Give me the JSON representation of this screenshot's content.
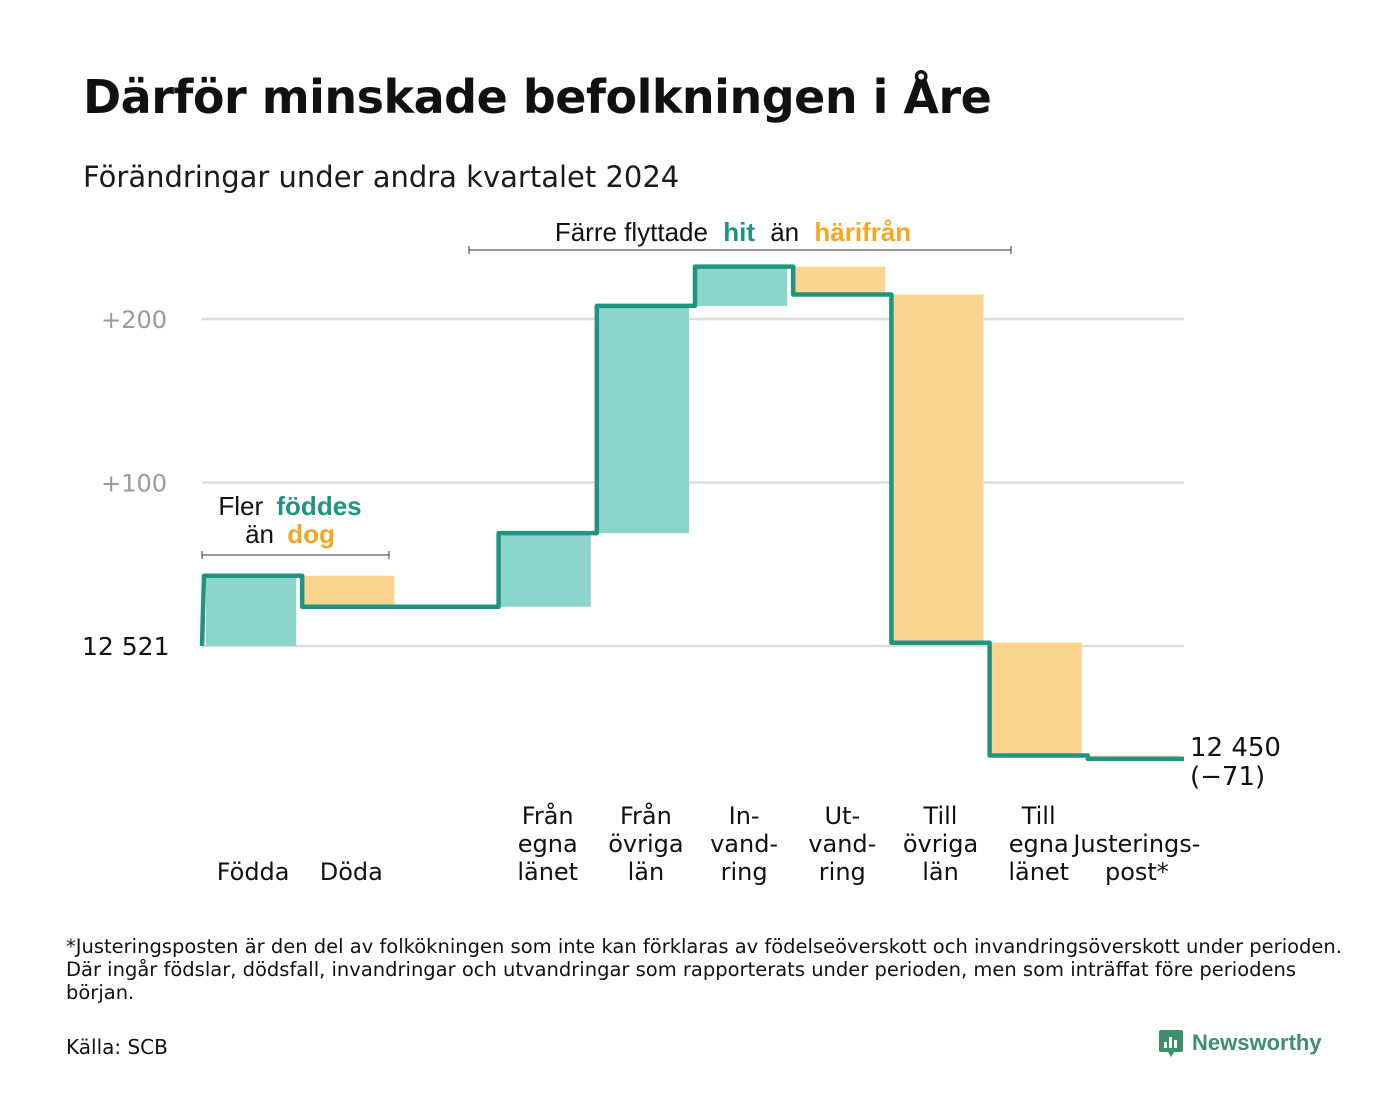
{
  "title": "Därför minskade befolkningen i Åre",
  "subtitle": "Förändringar under andra kvartalet 2024",
  "annotations": {
    "births": {
      "line1": "Fler",
      "line1_hl": "föddes",
      "line2": "än",
      "line2_hl": "dog"
    },
    "migration": {
      "pre": "Färre flyttade",
      "hl1": "hit",
      "mid": "än",
      "hl2": "härifrån"
    }
  },
  "colors": {
    "line": "#1f9480",
    "increase": "#8dd5cb",
    "decrease": "#fbd58e",
    "highlight_green": "#1f9480",
    "highlight_orange": "#f5a623",
    "grid": "#dddddd",
    "axis_text": "#9a9a9a"
  },
  "chart_data": {
    "type": "waterfall",
    "start_value": 12521,
    "start_label": "12  521",
    "end_label_value": "12 450",
    "end_label_change": "(−71)",
    "y_ticks": [
      {
        "value": 100,
        "label": "+100"
      },
      {
        "value": 200,
        "label": "+200"
      }
    ],
    "ylim": [
      -75,
      230
    ],
    "grid": true,
    "steps": [
      {
        "label": [
          "Födda"
        ],
        "change": 43
      },
      {
        "label": [
          "Döda"
        ],
        "change": -19
      },
      {
        "label": [],
        "change": 0
      },
      {
        "label": [
          "Från",
          "egna",
          "länet"
        ],
        "change": 45
      },
      {
        "label": [
          "Från",
          "övriga",
          "län"
        ],
        "change": 139
      },
      {
        "label": [
          "In-",
          "vand-",
          "ring"
        ],
        "change": 24
      },
      {
        "label": [
          "Ut-",
          "vand-",
          "ring"
        ],
        "change": -17
      },
      {
        "label": [
          "Till",
          "övriga",
          "län"
        ],
        "change": -213
      },
      {
        "label": [
          "Till",
          "egna",
          "länet"
        ],
        "change": -69
      },
      {
        "label": [
          "Justerings-",
          "post*"
        ],
        "change": -2
      }
    ]
  },
  "footnote": "*Justeringsposten är den del av folkökningen som inte kan förklaras av födelseöverskott och invandringsöverskott under perioden. Där ingår födslar, dödsfall, invandringar och utvandringar som rapporterats under perioden, men som inträffat före periodens början.",
  "source": "Källa: SCB",
  "brand": {
    "name": "Newsworthy",
    "icon": "chart-bubble-icon"
  }
}
